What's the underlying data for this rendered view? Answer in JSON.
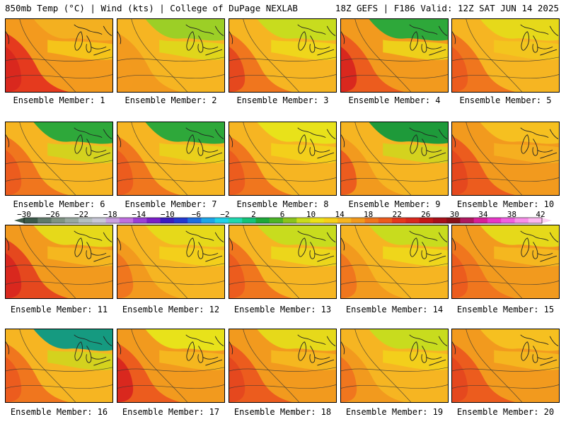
{
  "header": {
    "left": "850mb Temp (°C) | Wind (kts) | College of DuPage NEXLAB",
    "right": "18Z GEFS | F186 Valid: 12Z SAT JUN 14 2025"
  },
  "panels": [
    {
      "label": "Ensemble Member: 1",
      "base": "#f39a1e",
      "warm": "#e53a1e",
      "hot": "#d9281e",
      "cool": "#f5d21a",
      "north": "#f3b020"
    },
    {
      "label": "Ensemble Member: 2",
      "base": "#f6b522",
      "warm": "#f29a1e",
      "hot": "#f39a1e",
      "cool": "#d8e21a",
      "north": "#9ccf26"
    },
    {
      "label": "Ensemble Member: 3",
      "base": "#f6b522",
      "warm": "#f0761e",
      "hot": "#e5481e",
      "cool": "#ece21a",
      "north": "#c8dc1e"
    },
    {
      "label": "Ensemble Member: 4",
      "base": "#f29a1e",
      "warm": "#ec5c1e",
      "hot": "#d9281e",
      "cool": "#ece21a",
      "north": "#2ea83a"
    },
    {
      "label": "Ensemble Member: 5",
      "base": "#f6b522",
      "warm": "#f0761e",
      "hot": "#ec5c1e",
      "cool": "#f2cc1e",
      "north": "#e6d91a"
    },
    {
      "label": "Ensemble Member: 6",
      "base": "#f6b522",
      "warm": "#f0761e",
      "hot": "#ec5c1e",
      "cool": "#c8dc1e",
      "north": "#2ea83a"
    },
    {
      "label": "Ensemble Member: 7",
      "base": "#f6b522",
      "warm": "#f0761e",
      "hot": "#ec5c1e",
      "cool": "#e6d91a",
      "north": "#2ea83a"
    },
    {
      "label": "Ensemble Member: 8",
      "base": "#f6b522",
      "warm": "#f0761e",
      "hot": "#ec5c1e",
      "cool": "#f2d81a",
      "north": "#e8e21a"
    },
    {
      "label": "Ensemble Member: 9",
      "base": "#f6b522",
      "warm": "#f29a1e",
      "hot": "#ec5c1e",
      "cool": "#c8dc1e",
      "north": "#1e9a3a"
    },
    {
      "label": "Ensemble Member: 10",
      "base": "#f29a1e",
      "warm": "#ec5c1e",
      "hot": "#e5481e",
      "cool": "#f6b522",
      "north": "#f6c020"
    },
    {
      "label": "Ensemble Member: 11",
      "base": "#f29a1e",
      "warm": "#e5481e",
      "hot": "#d9281e",
      "cool": "#f6c020",
      "north": "#e6d91a"
    },
    {
      "label": "Ensemble Member: 12",
      "base": "#f6b522",
      "warm": "#f29a1e",
      "hot": "#f0761e",
      "cool": "#f2d81a",
      "north": "#e6d91a"
    },
    {
      "label": "Ensemble Member: 13",
      "base": "#f6b522",
      "warm": "#f0761e",
      "hot": "#ec5c1e",
      "cool": "#e8e21a",
      "north": "#c8dc1e"
    },
    {
      "label": "Ensemble Member: 14",
      "base": "#f6b522",
      "warm": "#f29a1e",
      "hot": "#f0761e",
      "cool": "#ece21a",
      "north": "#c8dc1e"
    },
    {
      "label": "Ensemble Member: 15",
      "base": "#f29a1e",
      "warm": "#f0761e",
      "hot": "#ec5c1e",
      "cool": "#f6c020",
      "north": "#e6d91a"
    },
    {
      "label": "Ensemble Member: 16",
      "base": "#f6b522",
      "warm": "#f0761e",
      "hot": "#ec5c1e",
      "cool": "#c8dc1e",
      "north": "#159a80"
    },
    {
      "label": "Ensemble Member: 17",
      "base": "#f29a1e",
      "warm": "#ec5c1e",
      "hot": "#d9281e",
      "cool": "#f6c020",
      "north": "#e8e21a"
    },
    {
      "label": "Ensemble Member: 18",
      "base": "#f29a1e",
      "warm": "#ec5c1e",
      "hot": "#e5481e",
      "cool": "#f6c020",
      "north": "#e6d91a"
    },
    {
      "label": "Ensemble Member: 19",
      "base": "#f6b522",
      "warm": "#f29a1e",
      "hot": "#f0761e",
      "cool": "#f2d81a",
      "north": "#c8dc1e"
    },
    {
      "label": "Ensemble Member: 20",
      "base": "#f29a1e",
      "warm": "#ec5c1e",
      "hot": "#e5481e",
      "cool": "#f6c020",
      "north": "#f6c020"
    }
  ],
  "colorbar": {
    "labels": [
      "−30",
      "−26",
      "−22",
      "−18",
      "−14",
      "−10",
      "−6",
      "−2",
      "2",
      "6",
      "10",
      "14",
      "18",
      "22",
      "26",
      "30",
      "34",
      "38",
      "42"
    ],
    "colors": [
      "#3c5a4a",
      "#607a6a",
      "#7f9484",
      "#98a8a0",
      "#b4bfc0",
      "#c8c8d8",
      "#c9a0e0",
      "#c070e0",
      "#9b40d8",
      "#7a1ec8",
      "#3a1cc0",
      "#2438d0",
      "#1e6ee0",
      "#1ea6e8",
      "#20d2e8",
      "#20d8b0",
      "#14c47a",
      "#1ea83a",
      "#4cb428",
      "#8ac41e",
      "#c8dc1e",
      "#ece21a",
      "#f6d01a",
      "#f6b522",
      "#f29a1e",
      "#f0761e",
      "#ec5c1e",
      "#e5381e",
      "#d9281e",
      "#c41818",
      "#a8101a",
      "#881018",
      "#b01860",
      "#d8209a",
      "#e838c8",
      "#f060e0",
      "#f890ea",
      "#fcb8f0"
    ]
  }
}
